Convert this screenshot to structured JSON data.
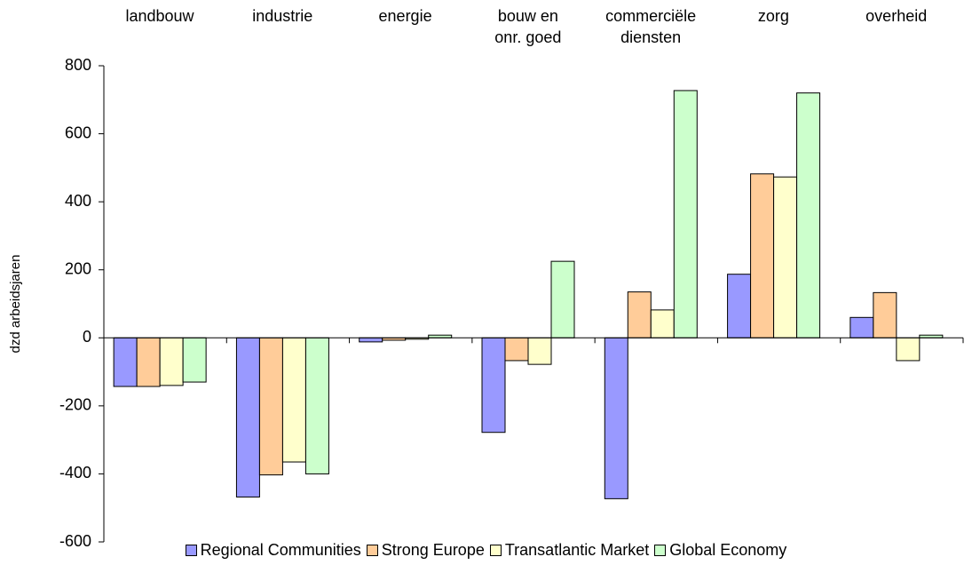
{
  "chart_data": {
    "type": "bar",
    "ylabel": "dzd arbeidsjaren",
    "categories": [
      "landbouw",
      "industrie",
      "energie",
      "bouw en\nonr. goed",
      "commerciële\ndiensten",
      "zorg",
      "overheid"
    ],
    "series": [
      {
        "name": "Regional Communities",
        "color": "#9999ff",
        "values": [
          -143,
          -468,
          -12,
          -278,
          -473,
          187,
          60
        ]
      },
      {
        "name": "Strong Europe",
        "color": "#ffcc99",
        "values": [
          -143,
          -403,
          -7,
          -67,
          135,
          482,
          133
        ]
      },
      {
        "name": "Transatlantic Market",
        "color": "#ffffcc",
        "values": [
          -140,
          -365,
          -4,
          -78,
          82,
          473,
          -67
        ]
      },
      {
        "name": "Global Economy",
        "color": "#ccffcc",
        "values": [
          -130,
          -400,
          8,
          225,
          727,
          720,
          8
        ]
      }
    ],
    "ylim": [
      -600,
      800
    ],
    "yticks": [
      -600,
      -400,
      -200,
      0,
      200,
      400,
      600,
      800
    ],
    "legend": "bottom"
  }
}
